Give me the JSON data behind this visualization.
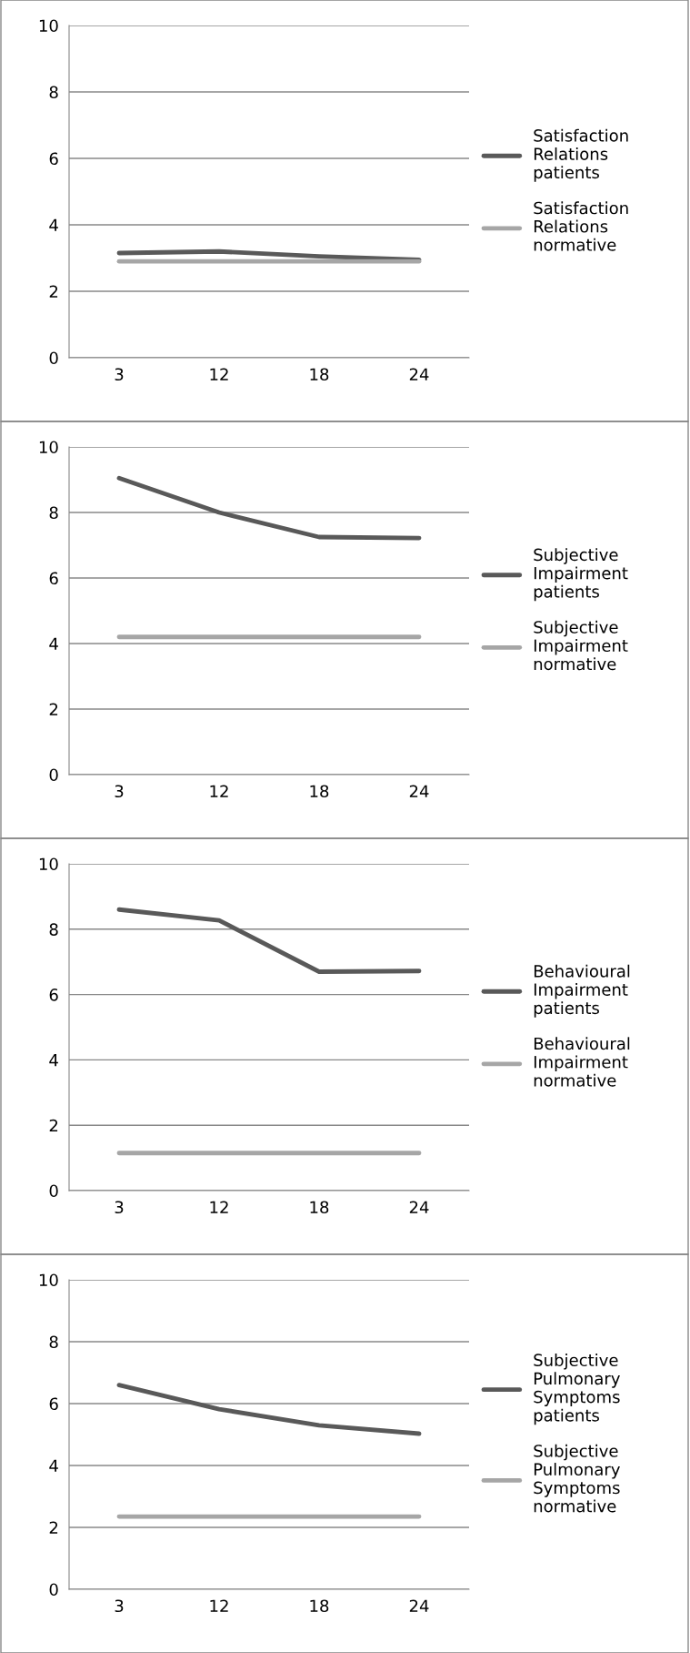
{
  "chart_data": [
    {
      "type": "line",
      "categories": [
        "3",
        "12",
        "18",
        "24"
      ],
      "ylim": [
        0,
        10
      ],
      "yticks": [
        0,
        2,
        4,
        6,
        8,
        10
      ],
      "grid": "y",
      "legend": "right",
      "marker": "none",
      "line_style": "solid",
      "series": [
        {
          "name": "Satisfaction Relations patients",
          "color": "#595959",
          "values": [
            3.15,
            3.2,
            3.05,
            2.95
          ]
        },
        {
          "name": "Satisfaction Relations normative",
          "color": "#a6a6a6",
          "values": [
            2.9,
            2.9,
            2.9,
            2.9
          ]
        }
      ]
    },
    {
      "type": "line",
      "categories": [
        "3",
        "12",
        "18",
        "24"
      ],
      "ylim": [
        0,
        10
      ],
      "yticks": [
        0,
        2,
        4,
        6,
        8,
        10
      ],
      "grid": "y",
      "legend": "right",
      "marker": "none",
      "line_style": "solid",
      "series": [
        {
          "name": "Subjective Impairment patients",
          "color": "#595959",
          "values": [
            9.05,
            8.0,
            7.25,
            7.22
          ]
        },
        {
          "name": "Subjective Impairment normative",
          "color": "#a6a6a6",
          "values": [
            4.2,
            4.2,
            4.2,
            4.2
          ]
        }
      ]
    },
    {
      "type": "line",
      "categories": [
        "3",
        "12",
        "18",
        "24"
      ],
      "ylim": [
        0,
        10
      ],
      "yticks": [
        0,
        2,
        4,
        6,
        8,
        10
      ],
      "grid": "y",
      "legend": "right",
      "marker": "none",
      "line_style": "solid",
      "series": [
        {
          "name": "Behavioural Impairment patients",
          "color": "#595959",
          "values": [
            8.6,
            8.27,
            6.7,
            6.72
          ]
        },
        {
          "name": "Behavioural Impairment normative",
          "color": "#a6a6a6",
          "values": [
            1.15,
            1.15,
            1.15,
            1.15
          ]
        }
      ]
    },
    {
      "type": "line",
      "categories": [
        "3",
        "12",
        "18",
        "24"
      ],
      "ylim": [
        0,
        10
      ],
      "yticks": [
        0,
        2,
        4,
        6,
        8,
        10
      ],
      "grid": "y",
      "legend": "right",
      "marker": "none",
      "line_style": "solid",
      "series": [
        {
          "name": "Subjective Pulmonary Symptoms patients",
          "color": "#595959",
          "values": [
            6.6,
            5.82,
            5.3,
            5.03
          ]
        },
        {
          "name": "Subjective Pulmonary Symptoms normative",
          "color": "#a6a6a6",
          "values": [
            2.35,
            2.35,
            2.35,
            2.35
          ]
        }
      ]
    }
  ]
}
